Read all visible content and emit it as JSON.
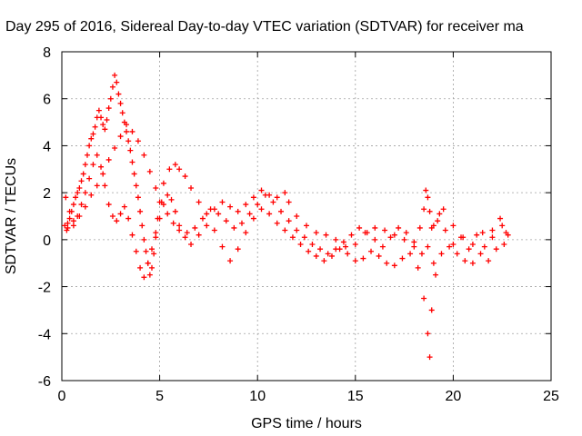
{
  "chart_data": {
    "type": "scatter",
    "title": "Day 295 of 2016, Sidereal Day-to-day VTEC variation (SDTVAR) for receiver ma",
    "xlabel": "GPS time / hours",
    "ylabel": "SDTVAR / TECUs",
    "xlim": [
      0,
      25
    ],
    "ylim": [
      -6,
      8
    ],
    "xticks": [
      "0",
      "5",
      "10",
      "15",
      "20",
      "25"
    ],
    "yticks": [
      "-6",
      "-4",
      "-2",
      "0",
      "2",
      "4",
      "6",
      "8"
    ],
    "grid": true,
    "marker": "+",
    "series": [
      {
        "color": "#ff0000",
        "x": [
          0.15,
          0.25,
          0.3,
          0.4,
          0.5,
          0.6,
          0.7,
          0.8,
          0.9,
          1.0,
          1.1,
          1.2,
          1.3,
          1.4,
          1.5,
          1.6,
          1.7,
          1.8,
          1.9,
          2.0,
          2.1,
          2.2,
          2.3,
          2.4,
          2.5,
          2.6,
          2.7,
          2.8,
          2.9,
          3.0,
          3.1,
          3.2,
          3.3,
          3.4,
          3.5,
          3.6,
          3.7,
          3.8,
          3.9,
          4.0,
          4.1,
          4.2,
          4.3,
          4.4,
          4.5,
          4.6,
          4.7,
          4.8,
          4.9,
          5.0,
          5.2,
          5.5,
          5.8,
          6.0,
          6.3,
          6.6,
          7.0,
          7.4,
          7.8,
          8.2,
          8.6,
          9.0,
          9.4,
          9.8,
          10.2,
          10.6,
          11.0,
          11.4,
          11.6,
          12.0,
          12.5,
          13.0,
          13.5,
          14.0,
          14.5,
          15.0,
          15.5,
          16.0,
          16.5,
          17.0,
          17.5,
          18.0,
          18.3,
          18.5,
          18.6,
          18.7,
          18.8,
          18.9,
          19.0,
          19.2,
          19.5,
          20.0,
          20.5,
          21.0,
          21.5,
          22.0,
          22.5,
          22.8
        ],
        "y": [
          0.6,
          0.4,
          0.7,
          0.9,
          1.2,
          1.5,
          1.8,
          2.0,
          2.2,
          2.5,
          2.8,
          3.2,
          3.6,
          4.0,
          4.3,
          4.5,
          4.8,
          5.2,
          5.5,
          5.2,
          4.9,
          4.7,
          5.1,
          5.6,
          6.0,
          6.5,
          7.0,
          6.7,
          6.2,
          5.8,
          5.4,
          5.0,
          4.6,
          4.2,
          3.8,
          3.3,
          2.8,
          2.3,
          1.8,
          1.2,
          0.6,
          0.0,
          -0.5,
          -1.0,
          -1.5,
          -1.2,
          -0.6,
          0.1,
          0.9,
          1.6,
          2.4,
          3.0,
          3.2,
          3.0,
          2.7,
          2.2,
          1.6,
          1.1,
          1.3,
          1.6,
          1.4,
          1.2,
          1.5,
          1.8,
          2.1,
          1.9,
          1.8,
          2.0,
          1.6,
          1.0,
          0.6,
          0.3,
          0.2,
          0.0,
          -0.3,
          -0.2,
          0.3,
          0.5,
          0.4,
          0.2,
          0.0,
          -0.3,
          0.5,
          1.3,
          2.1,
          1.8,
          1.2,
          0.5,
          -1.0,
          0.8,
          1.3,
          0.6,
          0.1,
          -0.2,
          0.3,
          0.1,
          0.6,
          0.2
        ]
      },
      {
        "color": "#ff0000",
        "x": [
          0.2,
          0.4,
          0.6,
          0.8,
          1.0,
          1.2,
          1.4,
          1.6,
          1.8,
          2.0,
          2.2,
          2.4,
          2.6,
          2.8,
          3.0,
          3.2,
          3.4,
          3.6,
          3.8,
          4.0,
          4.2,
          4.4,
          4.6,
          4.8,
          5.0,
          5.2,
          5.4,
          5.6,
          5.8,
          6.0,
          6.3,
          6.6,
          7.0,
          7.4,
          7.8,
          8.2,
          8.6,
          9.0,
          9.4,
          9.8,
          10.2,
          10.6,
          11.0,
          11.4,
          11.8,
          12.2,
          12.6,
          13.0,
          13.4,
          13.8,
          14.2,
          14.6,
          15.0,
          15.4,
          15.8,
          16.2,
          16.6,
          17.0,
          17.4,
          17.8,
          18.2,
          18.5,
          18.7,
          18.8,
          18.9,
          19.1,
          19.4,
          19.8,
          20.2,
          20.6,
          21.0,
          21.4,
          21.8,
          22.2,
          22.6
        ],
        "y": [
          1.8,
          1.2,
          0.8,
          1.0,
          1.5,
          2.0,
          2.6,
          3.2,
          3.6,
          3.1,
          2.3,
          1.5,
          1.0,
          0.8,
          1.1,
          1.4,
          0.9,
          0.2,
          -0.5,
          -1.2,
          -1.6,
          -1.0,
          -0.4,
          0.3,
          0.9,
          1.5,
          1.9,
          1.7,
          1.2,
          0.6,
          0.1,
          -0.2,
          0.2,
          0.6,
          0.4,
          -0.3,
          -0.9,
          -0.4,
          0.3,
          0.9,
          1.3,
          1.1,
          0.7,
          0.4,
          0.1,
          -0.2,
          -0.5,
          -0.7,
          -0.9,
          -0.7,
          -0.4,
          -0.6,
          -0.9,
          -0.8,
          -0.5,
          -0.7,
          -1.0,
          -1.1,
          -0.8,
          -0.6,
          -1.2,
          -2.5,
          -4.0,
          -5.0,
          -3.0,
          -1.5,
          -0.6,
          -0.3,
          -0.6,
          -0.9,
          -1.0,
          -0.6,
          -0.9,
          -0.4,
          -0.2
        ]
      },
      {
        "color": "#ff0000",
        "x": [
          0.3,
          0.6,
          0.9,
          1.2,
          1.5,
          1.8,
          2.1,
          2.4,
          2.7,
          3.0,
          3.3,
          3.6,
          3.9,
          4.2,
          4.5,
          4.8,
          5.1,
          5.4,
          5.7,
          6.0,
          6.4,
          6.8,
          7.2,
          7.6,
          8.0,
          8.4,
          8.8,
          9.2,
          9.6,
          10.0,
          10.4,
          10.8,
          11.2,
          11.6,
          12.0,
          12.4,
          12.8,
          13.2,
          13.6,
          14.0,
          14.4,
          14.8,
          15.2,
          15.6,
          16.0,
          16.4,
          16.8,
          17.2,
          17.6,
          18.0,
          18.4,
          18.7,
          19.0,
          19.3,
          19.6,
          20.0,
          20.4,
          20.8,
          21.2,
          21.6,
          22.0,
          22.4,
          22.7
        ],
        "y": [
          0.5,
          0.6,
          1.0,
          1.4,
          1.9,
          2.3,
          2.8,
          3.4,
          3.9,
          4.4,
          4.9,
          4.6,
          4.2,
          3.6,
          2.9,
          2.2,
          1.6,
          1.1,
          0.7,
          0.4,
          0.3,
          0.5,
          0.9,
          1.3,
          1.1,
          0.8,
          0.5,
          0.7,
          1.1,
          1.5,
          1.9,
          1.6,
          1.2,
          0.8,
          0.4,
          0.1,
          -0.2,
          -0.4,
          -0.6,
          -0.4,
          -0.1,
          0.2,
          0.5,
          0.3,
          0.0,
          -0.3,
          0.1,
          0.5,
          0.3,
          -0.1,
          -0.6,
          -0.3,
          0.6,
          1.1,
          0.4,
          -0.2,
          0.1,
          -0.4,
          0.2,
          -0.3,
          0.4,
          0.9,
          0.3
        ]
      }
    ]
  }
}
